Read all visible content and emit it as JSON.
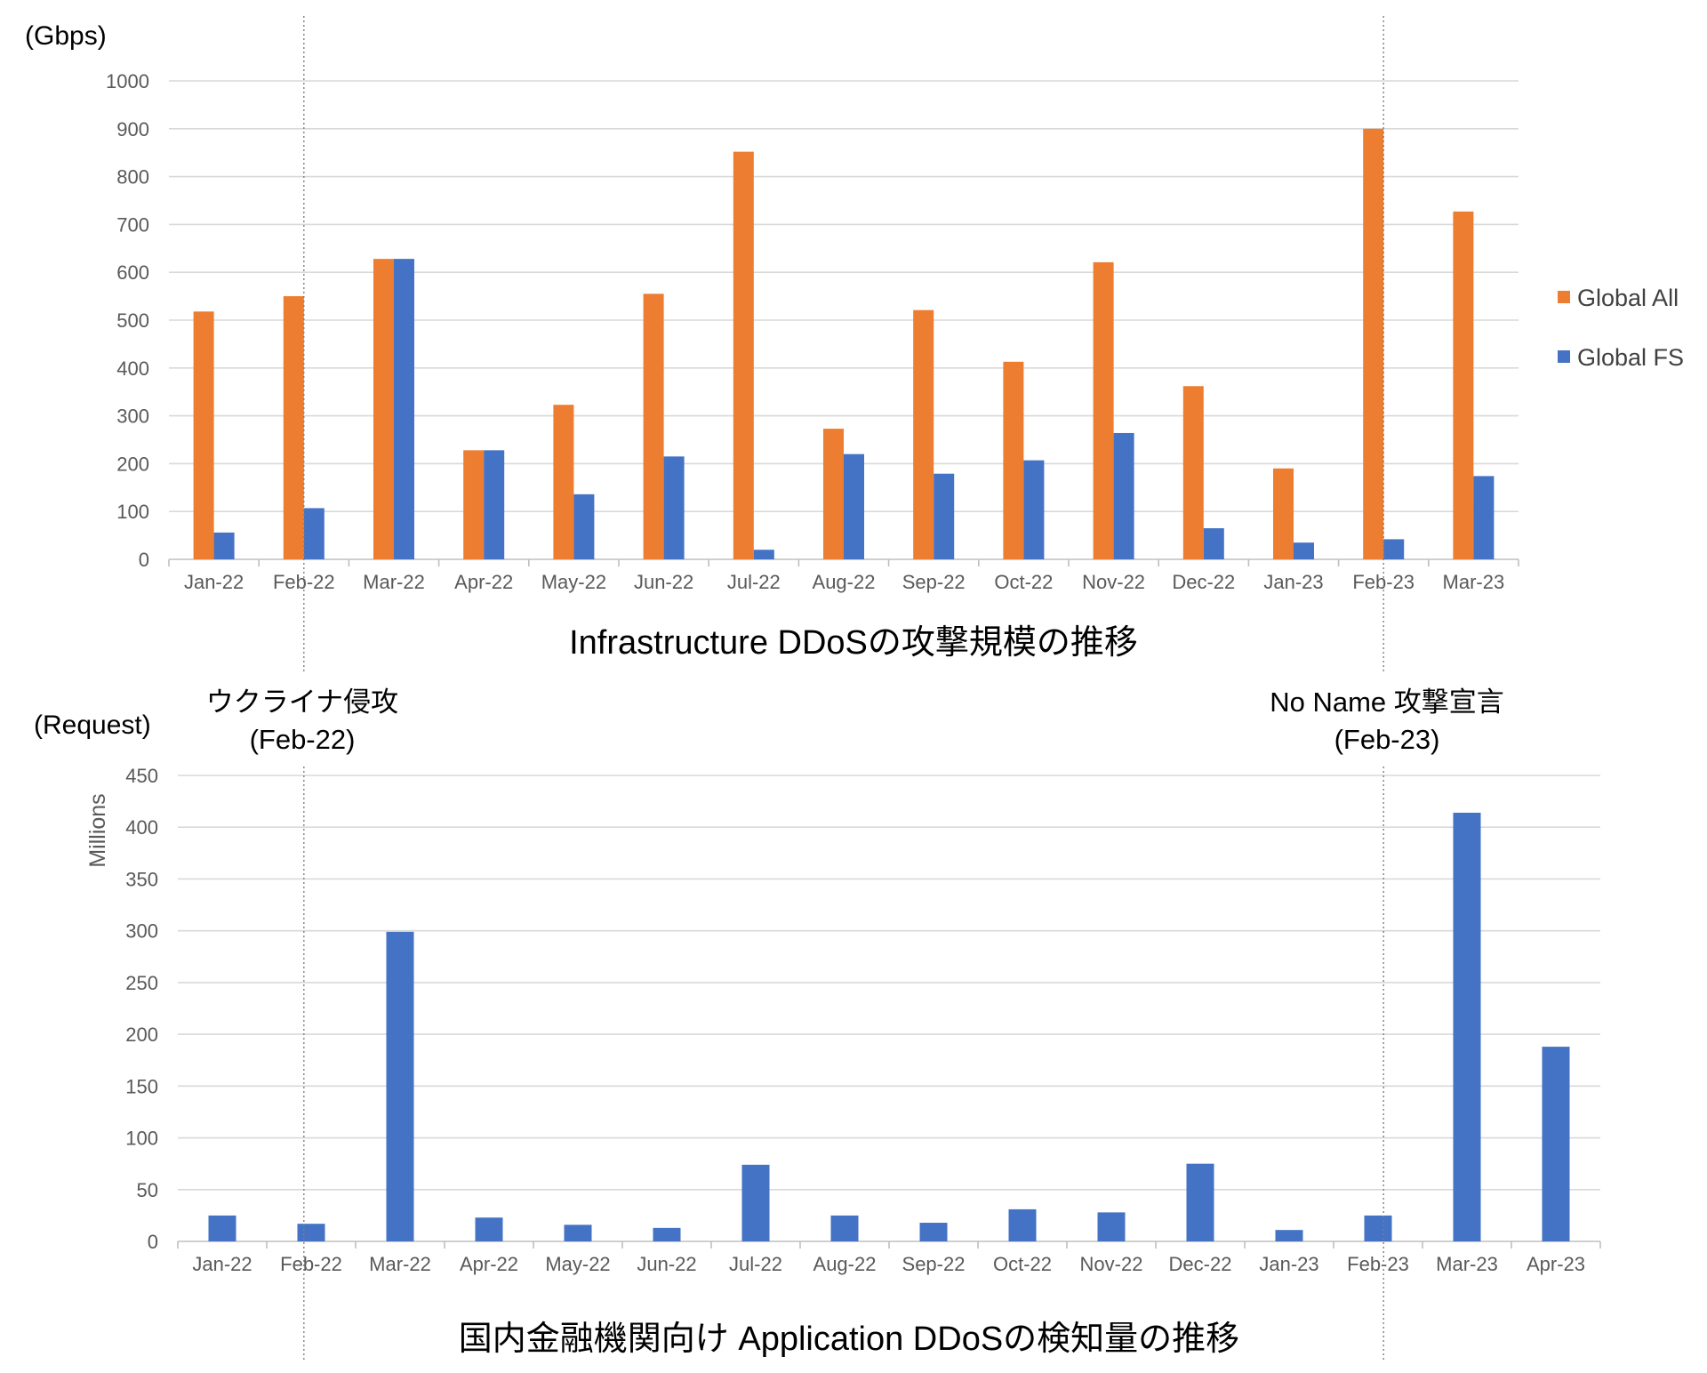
{
  "colors": {
    "global_all": "#ed7d31",
    "global_fs": "#4472c4"
  },
  "chart_data": [
    {
      "type": "bar",
      "title": "Infrastructure DDoSの攻撃規模の推移",
      "ylabel": "(Gbps)",
      "xlabel": "",
      "ylim": [
        0,
        1000
      ],
      "yticks": [
        0,
        100,
        200,
        300,
        400,
        500,
        600,
        700,
        800,
        900,
        1000
      ],
      "grid": true,
      "legend_position": "right",
      "categories": [
        "Jan-22",
        "Feb-22",
        "Mar-22",
        "Apr-22",
        "May-22",
        "Jun-22",
        "Jul-22",
        "Aug-22",
        "Sep-22",
        "Oct-22",
        "Nov-22",
        "Dec-22",
        "Jan-23",
        "Feb-23",
        "Mar-23"
      ],
      "series": [
        {
          "name": "Global All",
          "color": "#ed7d31",
          "values": [
            518,
            550,
            628,
            228,
            323,
            555,
            852,
            273,
            521,
            413,
            621,
            362,
            190,
            900,
            727
          ]
        },
        {
          "name": "Global FS",
          "color": "#4472c4",
          "values": [
            56,
            107,
            628,
            228,
            136,
            215,
            20,
            220,
            179,
            207,
            264,
            65,
            35,
            42,
            174
          ]
        }
      ]
    },
    {
      "type": "bar",
      "title": "国内金融機関向け Application DDoSの検知量の推移",
      "ylabel": "(Request)",
      "yunit": "Millions",
      "xlabel": "",
      "ylim": [
        0,
        450
      ],
      "yticks": [
        0,
        50,
        100,
        150,
        200,
        250,
        300,
        350,
        400,
        450
      ],
      "grid": true,
      "categories": [
        "Jan-22",
        "Feb-22",
        "Mar-22",
        "Apr-22",
        "May-22",
        "Jun-22",
        "Jul-22",
        "Aug-22",
        "Sep-22",
        "Oct-22",
        "Nov-22",
        "Dec-22",
        "Jan-23",
        "Feb-23",
        "Mar-23",
        "Apr-23"
      ],
      "series": [
        {
          "color": "#4472c4",
          "values": [
            25,
            17,
            299,
            23,
            16,
            13,
            74,
            25,
            18,
            31,
            28,
            75,
            11,
            25,
            414,
            188
          ]
        }
      ]
    }
  ],
  "annotations": {
    "event1_line1": "ウクライナ侵攻",
    "event1_line2": "(Feb-22)",
    "event2_line1": "No Name 攻撃宣言",
    "event2_line2": "(Feb-23)"
  }
}
